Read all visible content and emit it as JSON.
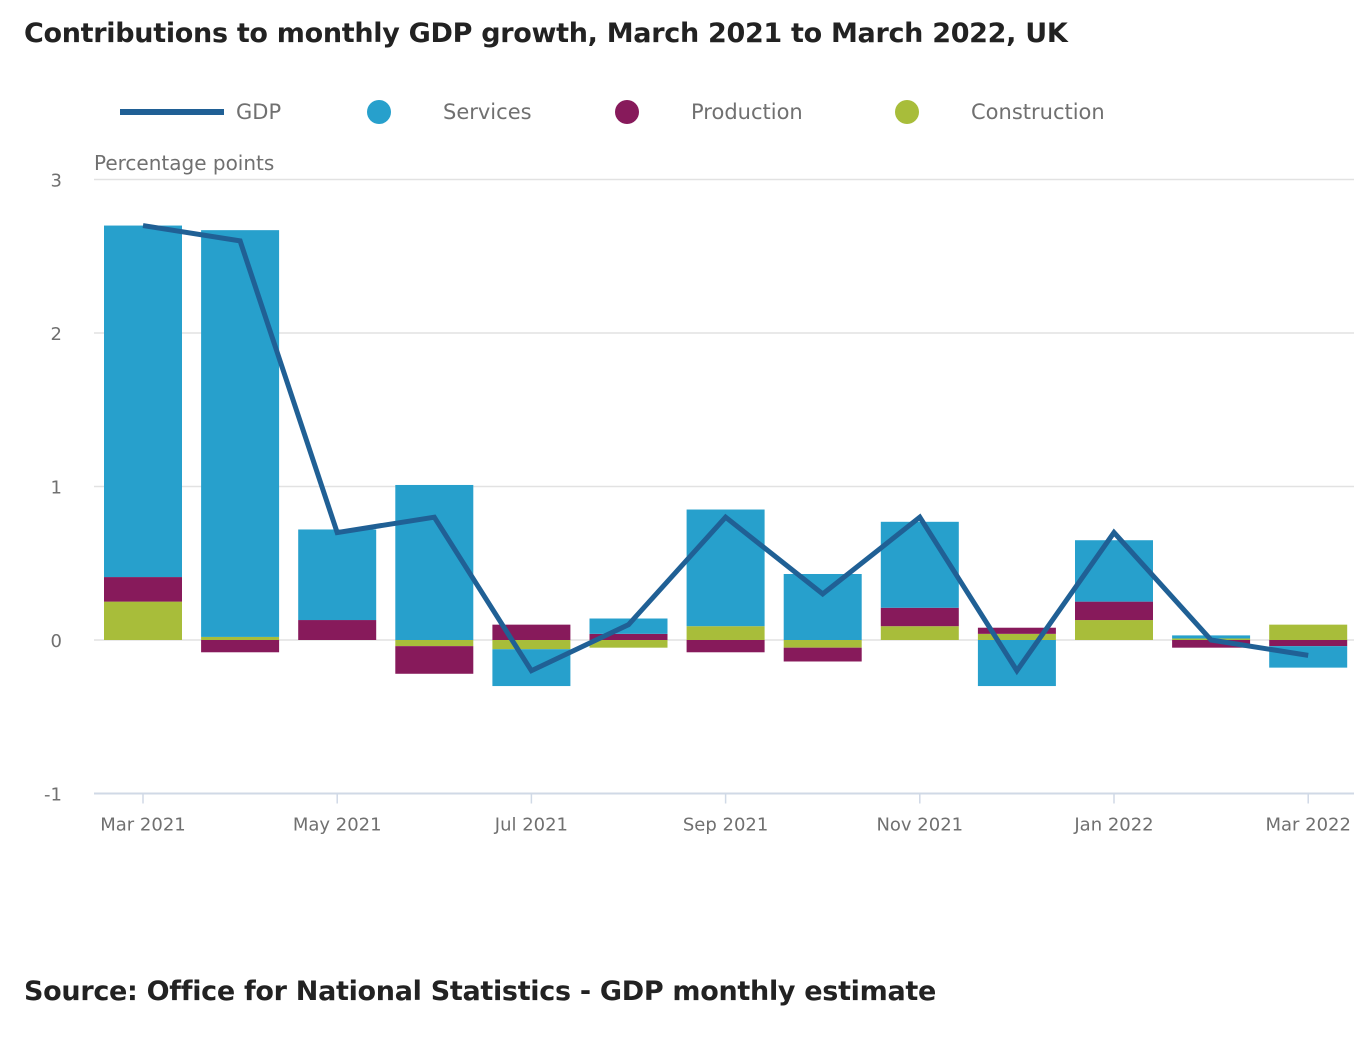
{
  "title": "Contributions to monthly GDP growth, March 2021 to March 2022, UK",
  "source": "Source: Office for National Statistics - GDP monthly estimate",
  "legend": [
    {
      "name": "GDP",
      "kind": "line",
      "color": "#206095"
    },
    {
      "name": "Services",
      "kind": "dot",
      "color": "#27A0CC"
    },
    {
      "name": "Production",
      "kind": "dot",
      "color": "#871A5B"
    },
    {
      "name": "Construction",
      "kind": "dot",
      "color": "#A8BD3A"
    }
  ],
  "chart_data": {
    "type": "bar",
    "subtype": "stacked-bar-with-line",
    "title": "Contributions to monthly GDP growth, March 2021 to March 2022, UK",
    "xlabel": "",
    "ylabel": "Percentage points",
    "ylim": [
      -1,
      3
    ],
    "yticks": [
      -1,
      0,
      1,
      2,
      3
    ],
    "grid": true,
    "legend_position": "top",
    "categories": [
      "Mar 2021",
      "Apr 2021",
      "May 2021",
      "Jun 2021",
      "Jul 2021",
      "Aug 2021",
      "Sep 2021",
      "Oct 2021",
      "Nov 2021",
      "Dec 2021",
      "Jan 2022",
      "Feb 2022",
      "Mar 2022"
    ],
    "xtick_labels": [
      "Mar 2021",
      "",
      "May 2021",
      "",
      "Jul 2021",
      "",
      "Sep 2021",
      "",
      "Nov 2021",
      "",
      "Jan 2022",
      "",
      "Mar 2022"
    ],
    "series": [
      {
        "name": "Services",
        "type": "bar",
        "color": "#27A0CC",
        "values": [
          2.29,
          2.65,
          0.59,
          1.01,
          -0.24,
          0.1,
          0.76,
          0.43,
          0.56,
          -0.3,
          0.4,
          0.02,
          -0.14
        ]
      },
      {
        "name": "Production",
        "type": "bar",
        "color": "#871A5B",
        "values": [
          0.16,
          -0.08,
          0.13,
          -0.18,
          0.1,
          0.04,
          -0.08,
          -0.09,
          0.12,
          0.04,
          0.12,
          -0.05,
          -0.04
        ]
      },
      {
        "name": "Construction",
        "type": "bar",
        "color": "#A8BD3A",
        "values": [
          0.25,
          0.02,
          0.0,
          -0.04,
          -0.06,
          -0.05,
          0.09,
          -0.05,
          0.09,
          0.04,
          0.13,
          0.01,
          0.1
        ]
      },
      {
        "name": "GDP",
        "type": "line",
        "color": "#206095",
        "values": [
          2.7,
          2.6,
          0.7,
          0.8,
          -0.2,
          0.1,
          0.8,
          0.3,
          0.8,
          -0.2,
          0.7,
          0.0,
          -0.1
        ]
      }
    ]
  }
}
